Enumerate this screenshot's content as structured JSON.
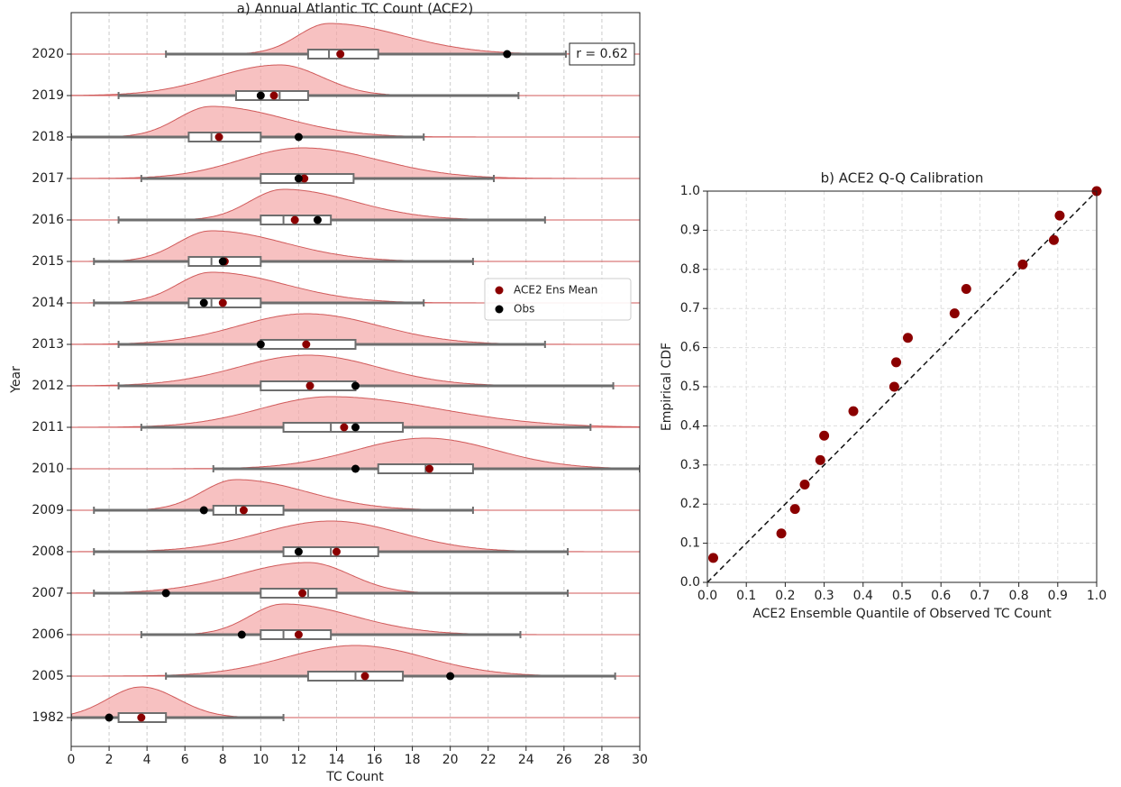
{
  "chart_data": [
    {
      "type": "ridgeline-box",
      "title": "a) Annual Atlantic TC Count (ACE2)",
      "xlabel": "TC Count",
      "ylabel": "Year",
      "categories": [
        "2020",
        "2019",
        "2018",
        "2017",
        "2016",
        "2015",
        "2014",
        "2013",
        "2012",
        "2011",
        "2010",
        "2009",
        "2008",
        "2007",
        "2006",
        "2005",
        "1982"
      ],
      "whisker_low": [
        5,
        2.5,
        0,
        3.7,
        2.5,
        1.2,
        1.2,
        2.5,
        2.5,
        3.7,
        7.5,
        1.2,
        1.2,
        1.2,
        3.7,
        5,
        0
      ],
      "q1": [
        12.5,
        8.7,
        6.2,
        10,
        10,
        6.2,
        6.2,
        10,
        10,
        11.2,
        16.2,
        7.5,
        11.2,
        10,
        10,
        12.5,
        2.5
      ],
      "median": [
        13.6,
        11,
        7.4,
        12.2,
        11.2,
        7.4,
        7.4,
        12.4,
        12.5,
        13.7,
        18.7,
        8.7,
        13.7,
        12.5,
        11.2,
        15,
        3.7
      ],
      "q3": [
        16.2,
        12.5,
        10,
        14.9,
        13.7,
        10,
        10,
        15,
        15,
        17.5,
        21.2,
        11.2,
        16.2,
        14,
        13.7,
        17.5,
        5
      ],
      "whisker_high": [
        26.1,
        23.6,
        18.6,
        22.3,
        25,
        21.2,
        18.6,
        25,
        28.6,
        27.4,
        30,
        21.2,
        26.2,
        26.2,
        23.7,
        28.7,
        11.2
      ],
      "series": [
        {
          "name": "ACE2 Ens Mean",
          "color": "#8b0000",
          "values": [
            14.2,
            10.7,
            7.8,
            12.3,
            11.8,
            8.1,
            8,
            12.4,
            12.6,
            14.4,
            18.9,
            9.1,
            14,
            12.2,
            12,
            15.5,
            3.7
          ]
        },
        {
          "name": "Obs",
          "color": "#000000",
          "values": [
            23,
            10,
            12,
            12,
            13,
            8,
            7,
            10,
            15,
            15,
            15,
            7,
            12,
            5,
            9,
            20,
            2
          ]
        }
      ],
      "density_color": "#f4a6a6",
      "line_color": "#d05a5a",
      "box_color": "#6e6e6e",
      "annotation": "r = 0.62",
      "xlim": [
        0,
        30
      ],
      "xticks": [
        0,
        2,
        4,
        6,
        8,
        10,
        12,
        14,
        16,
        18,
        20,
        22,
        24,
        26,
        28,
        30
      ],
      "grid": true,
      "legend": "center right"
    },
    {
      "type": "scatter",
      "title": "b) ACE2 Q-Q Calibration",
      "xlabel": "ACE2 Ensemble Quantile of Observed TC Count",
      "ylabel": "Empirical CDF",
      "x": [
        0.015,
        0.19,
        0.225,
        0.25,
        0.29,
        0.3,
        0.375,
        0.48,
        0.485,
        0.515,
        0.635,
        0.665,
        0.81,
        0.89,
        0.905,
        1.0
      ],
      "values": [
        0.0625,
        0.125,
        0.1875,
        0.25,
        0.3125,
        0.375,
        0.4375,
        0.5,
        0.5625,
        0.625,
        0.6875,
        0.75,
        0.8125,
        0.875,
        0.9375,
        1.0
      ],
      "color": "#8b0000",
      "xlim": [
        0,
        1
      ],
      "ylim": [
        0,
        1
      ],
      "xticks": [
        {
          "value": 0,
          "label": "0.0"
        },
        0.1,
        0.2,
        0.3,
        0.4,
        0.5,
        0.6,
        0.7,
        0.8,
        0.9,
        {
          "value": 1,
          "label": "1.0"
        }
      ],
      "yticks": [
        {
          "value": 0,
          "label": "0.0"
        },
        0.1,
        0.2,
        0.3,
        0.4,
        0.5,
        0.6,
        0.7,
        0.8,
        0.9,
        {
          "value": 1,
          "label": "1.0"
        }
      ],
      "grid": true
    }
  ]
}
